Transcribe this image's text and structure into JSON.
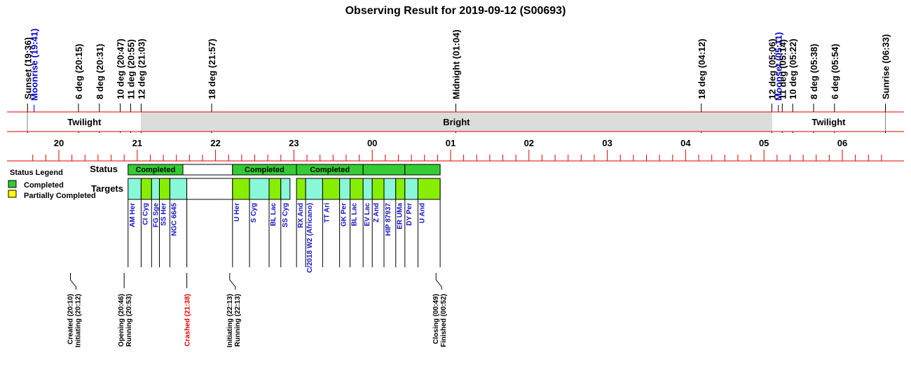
{
  "chart_data": {
    "type": "timeline",
    "title": "Observing Result for 2019-09-12 (S00693)",
    "time_axis": {
      "start": "19:20",
      "end": "06:45",
      "hour_labels": [
        "20",
        "21",
        "22",
        "23",
        "00",
        "01",
        "02",
        "03",
        "04",
        "05",
        "06"
      ]
    },
    "events": [
      {
        "label": "Sunset (19:36)",
        "time": "19:36",
        "kind": "sun"
      },
      {
        "label": "Moonrise (19:41)",
        "time": "19:41",
        "kind": "moon"
      },
      {
        "label": "6 deg (20:15)",
        "time": "20:15",
        "kind": "sun"
      },
      {
        "label": "8 deg (20:31)",
        "time": "20:31",
        "kind": "sun"
      },
      {
        "label": "10 deg (20:47)",
        "time": "20:47",
        "kind": "sun"
      },
      {
        "label": "11 deg (20:55)",
        "time": "20:55",
        "kind": "sun"
      },
      {
        "label": "12 deg (21:03)",
        "time": "21:03",
        "kind": "sun"
      },
      {
        "label": "18 deg (21:57)",
        "time": "21:57",
        "kind": "sun"
      },
      {
        "label": "Midnight (01:04)",
        "time": "01:04",
        "kind": "sun"
      },
      {
        "label": "18 deg (04:12)",
        "time": "04:12",
        "kind": "sun"
      },
      {
        "label": "12 deg (05:06)",
        "time": "05:06",
        "kind": "sun"
      },
      {
        "label": "Moonset (05:11)",
        "time": "05:11",
        "kind": "moon"
      },
      {
        "label": "11 deg (05:14)",
        "time": "05:14",
        "kind": "sun"
      },
      {
        "label": "10 deg (05:22)",
        "time": "05:22",
        "kind": "sun"
      },
      {
        "label": "8 deg (05:38)",
        "time": "05:38",
        "kind": "sun"
      },
      {
        "label": "6 deg (05:54)",
        "time": "05:54",
        "kind": "sun"
      },
      {
        "label": "Sunrise (06:33)",
        "time": "06:33",
        "kind": "sun"
      }
    ],
    "phases": [
      {
        "label": "Twilight",
        "start": "19:36",
        "end": "21:03",
        "color": "#ffffff"
      },
      {
        "label": "Bright",
        "start": "21:03",
        "end": "05:06",
        "color": "#dcdcdc"
      },
      {
        "label": "Twilight",
        "start": "05:06",
        "end": "06:33",
        "color": "#ffffff"
      }
    ],
    "row_labels": {
      "status": "Status",
      "targets": "Targets"
    },
    "legend": {
      "title": "Status Legend",
      "items": [
        {
          "label": "Completed",
          "color": "#33cc33"
        },
        {
          "label": "Partially Completed",
          "color": "#ffff00"
        }
      ]
    },
    "status_blocks": [
      {
        "start": "20:53",
        "end": "21:35",
        "label": "Completed",
        "color": "#33cc33"
      },
      {
        "start": "21:35",
        "end": "22:13",
        "label": "",
        "color": "#ffffff"
      },
      {
        "start": "22:13",
        "end": "23:02",
        "label": "Completed",
        "color": "#33cc33"
      },
      {
        "start": "23:02",
        "end": "23:53",
        "label": "Completed",
        "color": "#33cc33"
      },
      {
        "start": "23:53",
        "end": "00:25",
        "label": "",
        "color": "#33cc33"
      },
      {
        "start": "00:25",
        "end": "00:52",
        "label": "",
        "color": "#33cc33"
      }
    ],
    "targets": [
      {
        "name": "AM Her",
        "start": "20:53",
        "end": "21:03",
        "color": "#88f8d8"
      },
      {
        "name": "CI Cyg",
        "start": "21:03",
        "end": "21:11",
        "color": "#88ee00"
      },
      {
        "name": "FG Sge",
        "start": "21:11",
        "end": "21:17",
        "color": "#88f8d8"
      },
      {
        "name": "SS Her",
        "start": "21:17",
        "end": "21:25",
        "color": "#88ee00"
      },
      {
        "name": "NGC 6645",
        "start": "21:25",
        "end": "21:38",
        "color": "#88f8d8"
      },
      {
        "name": "",
        "start": "21:38",
        "end": "22:13",
        "color": "#ffffff"
      },
      {
        "name": "U Her",
        "start": "22:13",
        "end": "22:26",
        "color": "#88ee00"
      },
      {
        "name": "S Cyg",
        "start": "22:26",
        "end": "22:41",
        "color": "#88f8d8"
      },
      {
        "name": "BL Lac",
        "start": "22:41",
        "end": "22:50",
        "color": "#88ee00"
      },
      {
        "name": "SS Cyg",
        "start": "22:50",
        "end": "22:57",
        "color": "#88f8d8"
      },
      {
        "name": "RX And",
        "start": "23:02",
        "end": "23:09",
        "color": "#88ee00"
      },
      {
        "name": "C/2018 W2 (Africano)",
        "start": "23:09",
        "end": "23:22",
        "color": "#88f8d8"
      },
      {
        "name": "TT Ari",
        "start": "23:22",
        "end": "23:35",
        "color": "#88ee00"
      },
      {
        "name": "GK Per",
        "start": "23:35",
        "end": "23:43",
        "color": "#88f8d8"
      },
      {
        "name": "BL Lac",
        "start": "23:43",
        "end": "23:53",
        "color": "#88ee00"
      },
      {
        "name": "EV Lac",
        "start": "23:53",
        "end": "24:00",
        "color": "#88f8d8"
      },
      {
        "name": "Z And",
        "start": "24:00",
        "end": "24:09",
        "color": "#88ee00"
      },
      {
        "name": "HIP 87937",
        "start": "24:09",
        "end": "24:18",
        "color": "#88f8d8"
      },
      {
        "name": "ER UMa",
        "start": "24:18",
        "end": "24:25",
        "color": "#88ee00"
      },
      {
        "name": "DY Per",
        "start": "24:25",
        "end": "24:35",
        "color": "#88f8d8"
      },
      {
        "name": "U And",
        "start": "24:35",
        "end": "24:52",
        "color": "#88ee00"
      }
    ],
    "milestones": [
      {
        "lines": [
          "Created (20:10)",
          "Initiating (20:12)"
        ],
        "time": "20:11",
        "kink": true,
        "color": "#000000"
      },
      {
        "lines": [
          "Opening (20:46)",
          "Running (20:53)"
        ],
        "time": "20:50",
        "kink": false,
        "color": "#000000"
      },
      {
        "lines": [
          "Crashed (21:38)"
        ],
        "time": "21:38",
        "kink": false,
        "color": "#e00000"
      },
      {
        "lines": [
          "Initiating (22:13)",
          "Running (22:13)"
        ],
        "time": "22:13",
        "kink": true,
        "color": "#000000"
      },
      {
        "lines": [
          "Closing (00:49)",
          "Finished (00:52)"
        ],
        "time": "24:51",
        "kink": true,
        "color": "#000000"
      }
    ]
  }
}
